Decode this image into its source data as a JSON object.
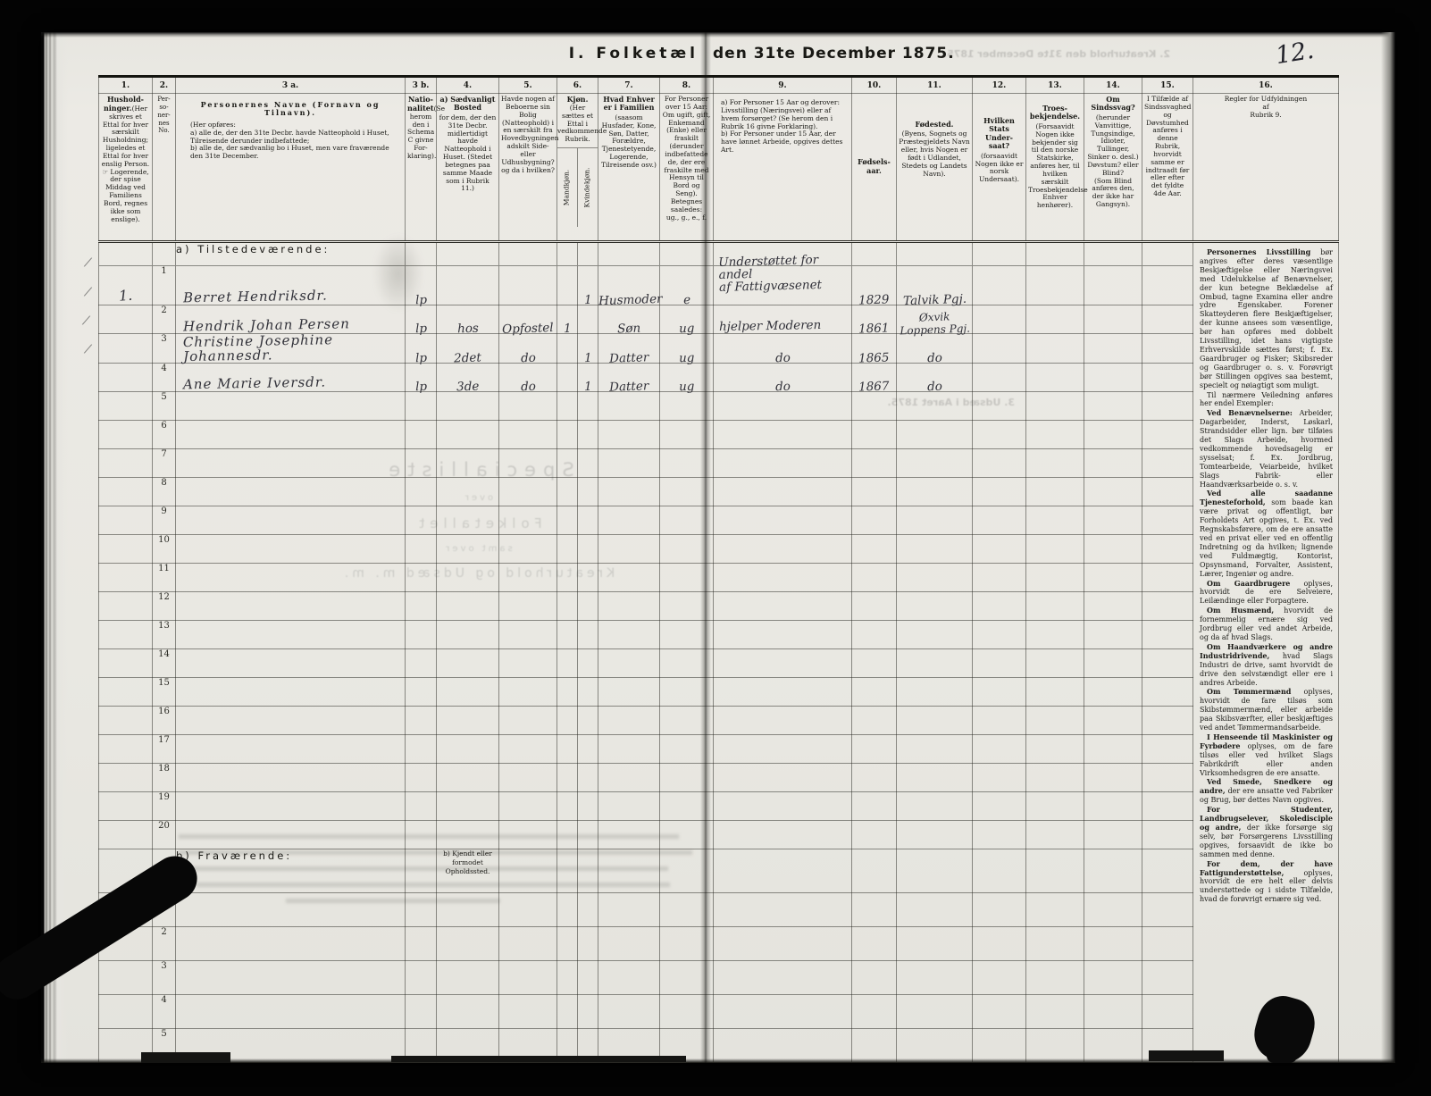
{
  "page": {
    "number": "12.",
    "title_left": "I. Folketæl",
    "title_right": "den 31te December 1875."
  },
  "bleedthrough": {
    "top_line": "2. Kreaturhold den 31te December 1875.",
    "mid_lines": [
      "Specialliste",
      "over",
      "Folketallet",
      "samt over",
      "Kreaturhold og Udsæd m. m."
    ],
    "row_line": "3. Udsæd i Aaret 1875."
  },
  "header": {
    "nums": [
      "1.",
      "2.",
      "3 a.",
      "3 b.",
      "4.",
      "5.",
      "6.",
      "7.",
      "8.",
      "9.",
      "10.",
      "11.",
      "12.",
      "13.",
      "14.",
      "15.",
      "16."
    ],
    "col1": {
      "lead": "Hushold-\nninger.",
      "rest": "(Her skrives et Ettal for hver særskilt Husholdning; ligeledes et Ettal for hver enslig Person.\n☞ Logerende, der spise Middag ved Familiens Bord, regnes ikke som enslige)."
    },
    "col2": {
      "rest": "Per-\nso-\nner-\nnes\nNo."
    },
    "col3a": {
      "lead": "Personernes Navne (Fornavn og Tilnavn).",
      "rest": "(Her opføres:\na) alle de, der den 31te Decbr. havde Natteophold i Huset, Tilreisende derunder indbefattede;\nb) alle de, der sædvanlig bo i Huset, men vare fraværende den 31te December."
    },
    "col3b": {
      "lead": "Natio-\nnalitet",
      "rest": "(Se herom den i Schema C givne For-klaring)."
    },
    "col4": {
      "lead": "a) Sædvanligt Bosted",
      "rest": "for dem, der den 31te Decbr. midlertidigt havde Natteophold i Huset. (Stedet betegnes paa samme Maade som i Rubrik 11.)"
    },
    "col5": {
      "rest": "Havde nogen af Beboerne sin Bolig (Natteophold) i en særskilt fra Hovedbygningen adskilt Side- eller Udhusbygning? og da i hvilken?"
    },
    "col6": {
      "lead": "Kjøn.",
      "rest": "(Her sættes et Ettal i vedkommende Rubrik.",
      "male": "Mandkjøn.",
      "female": "Kvindekjøn."
    },
    "col7": {
      "lead": "Hvad Enhver er i Familien",
      "rest": "(saasom Husfader, Kone, Søn, Datter, Forældre, Tjenestetyende, Logerende, Tilreisende osv.)"
    },
    "col8": {
      "rest": "For Personer over 15 Aar: Om ugift, gift, Enkemand (Enke) eller fraskilt (derunder indbefattede de, der ere fraskilte med Hensyn til Bord og Seng).\nBetegnes saaledes:\nug., g., e., f."
    },
    "col9": {
      "rest": "a) For Personer 15 Aar og derover: Livsstilling (Næringsvei) eller af hvem forsørget? (Se herom den i Rubrik 16 givne Forklaring).\nb) For Personer under 15 Aar, der have lønnet Arbeide, opgives dettes Art."
    },
    "col10": {
      "lead": "Fødsels-\naar."
    },
    "col11": {
      "lead": "Fødested.",
      "rest": "(Byens, Sognets og Præstegjeldets Navn eller, hvis Nogen er født i Udlandet, Stedets og Landets Navn)."
    },
    "col12": {
      "lead": "Hvilken Stats Under-\nsaat?",
      "rest": "(forsaavidt Nogen ikke er norsk Undersaat)."
    },
    "col13": {
      "lead": "Troes-\nbekjendelse.",
      "rest": "(Forsaavidt Nogen ikke bekjender sig til den norske Statskirke, anføres her, til hvilken særskilt Troesbekjendelse Enhver henhører)."
    },
    "col14": {
      "lead": "Om Sindssvag?",
      "rest": "(herunder Vanvittige, Tungsindige, Idioter, Tullinger, Sinker o. desl.)\nDøvstum? eller Blind?\n(Som Blind anføres den, der ikke har Gangsyn)."
    },
    "col15": {
      "rest": "I Tilfælde af Sindssvaghed og Døvstumhed anføres i denne Rubrik, hvorvidt samme er indtraadt før eller efter det fyldte 4de Aar."
    },
    "col16": {
      "lead": "Regler for Udfyldningen\naf\nRubrik 9."
    }
  },
  "sections": {
    "a_label": "a) Tilstedeværende:",
    "b_label": "b) Fraværende:",
    "b_col4": "b) Kjendt eller\nformodet\nOpholdssted."
  },
  "row_numbers_a": [
    "1",
    "2",
    "3",
    "4",
    "5",
    "6",
    "7",
    "8",
    "9",
    "10",
    "11",
    "12",
    "13",
    "14",
    "15",
    "16",
    "17",
    "18",
    "19",
    "20"
  ],
  "row_numbers_b": [
    "1",
    "2",
    "3",
    "4",
    "5"
  ],
  "records": [
    {
      "household": "1.",
      "no": "1",
      "name": "Berret Hendriksdr.",
      "nationality": "lp",
      "bosted": "",
      "bolig": "",
      "male": "",
      "female": "1",
      "family": "Husmoder",
      "status": "e",
      "occupation": "Understøttet for andel\naf Fattigvæsenet",
      "born": "1829",
      "birthplace": "Talvik Pgj."
    },
    {
      "household": "",
      "no": "2",
      "name": "Hendrik Johan Persen",
      "nationality": "lp",
      "bosted": "hos",
      "bolig": "Opfostel",
      "male": "1",
      "female": "",
      "family": "Søn",
      "status": "ug",
      "occupation": "hjelper Moderen",
      "born": "1861",
      "birthplace": "Øxvik\nLoppens Pgj."
    },
    {
      "household": "",
      "no": "3",
      "name": "Christine Josephine Johannesdr.",
      "nationality": "lp",
      "bosted": "2det",
      "bolig": "do",
      "male": "",
      "female": "1",
      "family": "Datter",
      "status": "ug",
      "occupation": "do",
      "born": "1865",
      "birthplace": "do"
    },
    {
      "household": "",
      "no": "4",
      "name": "Ane Marie Iversdr.",
      "nationality": "lp",
      "bosted": "3de",
      "bolig": "do",
      "male": "",
      "female": "1",
      "family": "Datter",
      "status": "ug",
      "occupation": "do",
      "born": "1867",
      "birthplace": "do"
    }
  ],
  "instructions": [
    {
      "lead": "Personernes Livsstilling",
      "text": "bør angives efter deres væsentlige Beskjæftigelse eller Næringsvei med Udelukkelse af Benævnelser, der kun betegne Beklædelse af Ombud, tagne Examina eller andre ydre Egenskaber. Forener Skatteyderen flere Beskjæftigelser, der kunne ansees som væsentlige, bør han opføres med dobbelt Livsstilling, idet hans vigtigste Erhvervskilde sættes først; f. Ex. Gaardbruger og Fisker; Skibsreder og Gaardbruger o. s. v. Forøvrigt bør Stillingen opgives saa bestemt, specielt og nøiagtigt som muligt."
    },
    {
      "lead": "",
      "text": "Til nærmere Veiledning anføres her endel Exempler:"
    },
    {
      "lead": "Ved Benævnelserne:",
      "text": "Arbeider, Dagarbeider, Inderst, Løskarl, Strandsidder eller lign. bør tilføies det Slags Arbeide, hvormed vedkommende hovedsagelig er sysselsat; f. Ex. Jordbrug, Tomtearbeide, Veiarbeide, hvilket Slags Fabrik- eller Haandværksarbeide o. s. v."
    },
    {
      "lead": "Ved alle saadanne Tjenesteforhold,",
      "text": "som baade kan være privat og offentligt, bør Forholdets Art opgives, t. Ex. ved Regnskabsførere, om de ere ansatte ved en privat eller ved en offentlig Indretning og da hvilken; lignende ved Fuldmægtig, Kontorist, Opsynsmand, Forvalter, Assistent, Lærer, Ingeniør og andre."
    },
    {
      "lead": "Om Gaardbrugere",
      "text": "oplyses, hvorvidt de ere Selveiere, Leilændinge eller Forpagtere."
    },
    {
      "lead": "Om Husmænd,",
      "text": "hvorvidt de fornemmelig ernære sig ved Jordbrug eller ved andet Arbeide, og da af hvad Slags."
    },
    {
      "lead": "Om Haandværkere og andre Industridrivende,",
      "text": "hvad Slags Industri de drive, samt hvorvidt de drive den selvstændigt eller ere i andres Arbeide."
    },
    {
      "lead": "Om Tømmermænd",
      "text": "oplyses, hvorvidt de fare tilsøs som Skibstømmermænd, eller arbeide paa Skibsværfter, eller beskjæftiges ved andet Tømmermandsarbeide."
    },
    {
      "lead": "I Henseende til Maskinister og Fyrbødere",
      "text": "oplyses, om de fare tilsøs eller ved hvilket Slags Fabrikdrift eller anden Virksomhedsgren de ere ansatte."
    },
    {
      "lead": "Ved Smede, Snedkere og andre,",
      "text": "der ere ansatte ved Fabriker og Brug, bør dettes Navn opgives."
    },
    {
      "lead": "For Studenter, Landbrugselever, Skoledisciple og andre,",
      "text": "der ikke forsørge sig selv, bør Forsørgerens Livsstilling opgives, forsaavidt de ikke bo sammen med denne."
    },
    {
      "lead": "For dem, der have Fattigunderstøttelse,",
      "text": "oplyses, hvorvidt de ere helt eller delvis understøttede og i sidste Tilfælde, hvad de forøvrigt ernære sig ved."
    }
  ]
}
